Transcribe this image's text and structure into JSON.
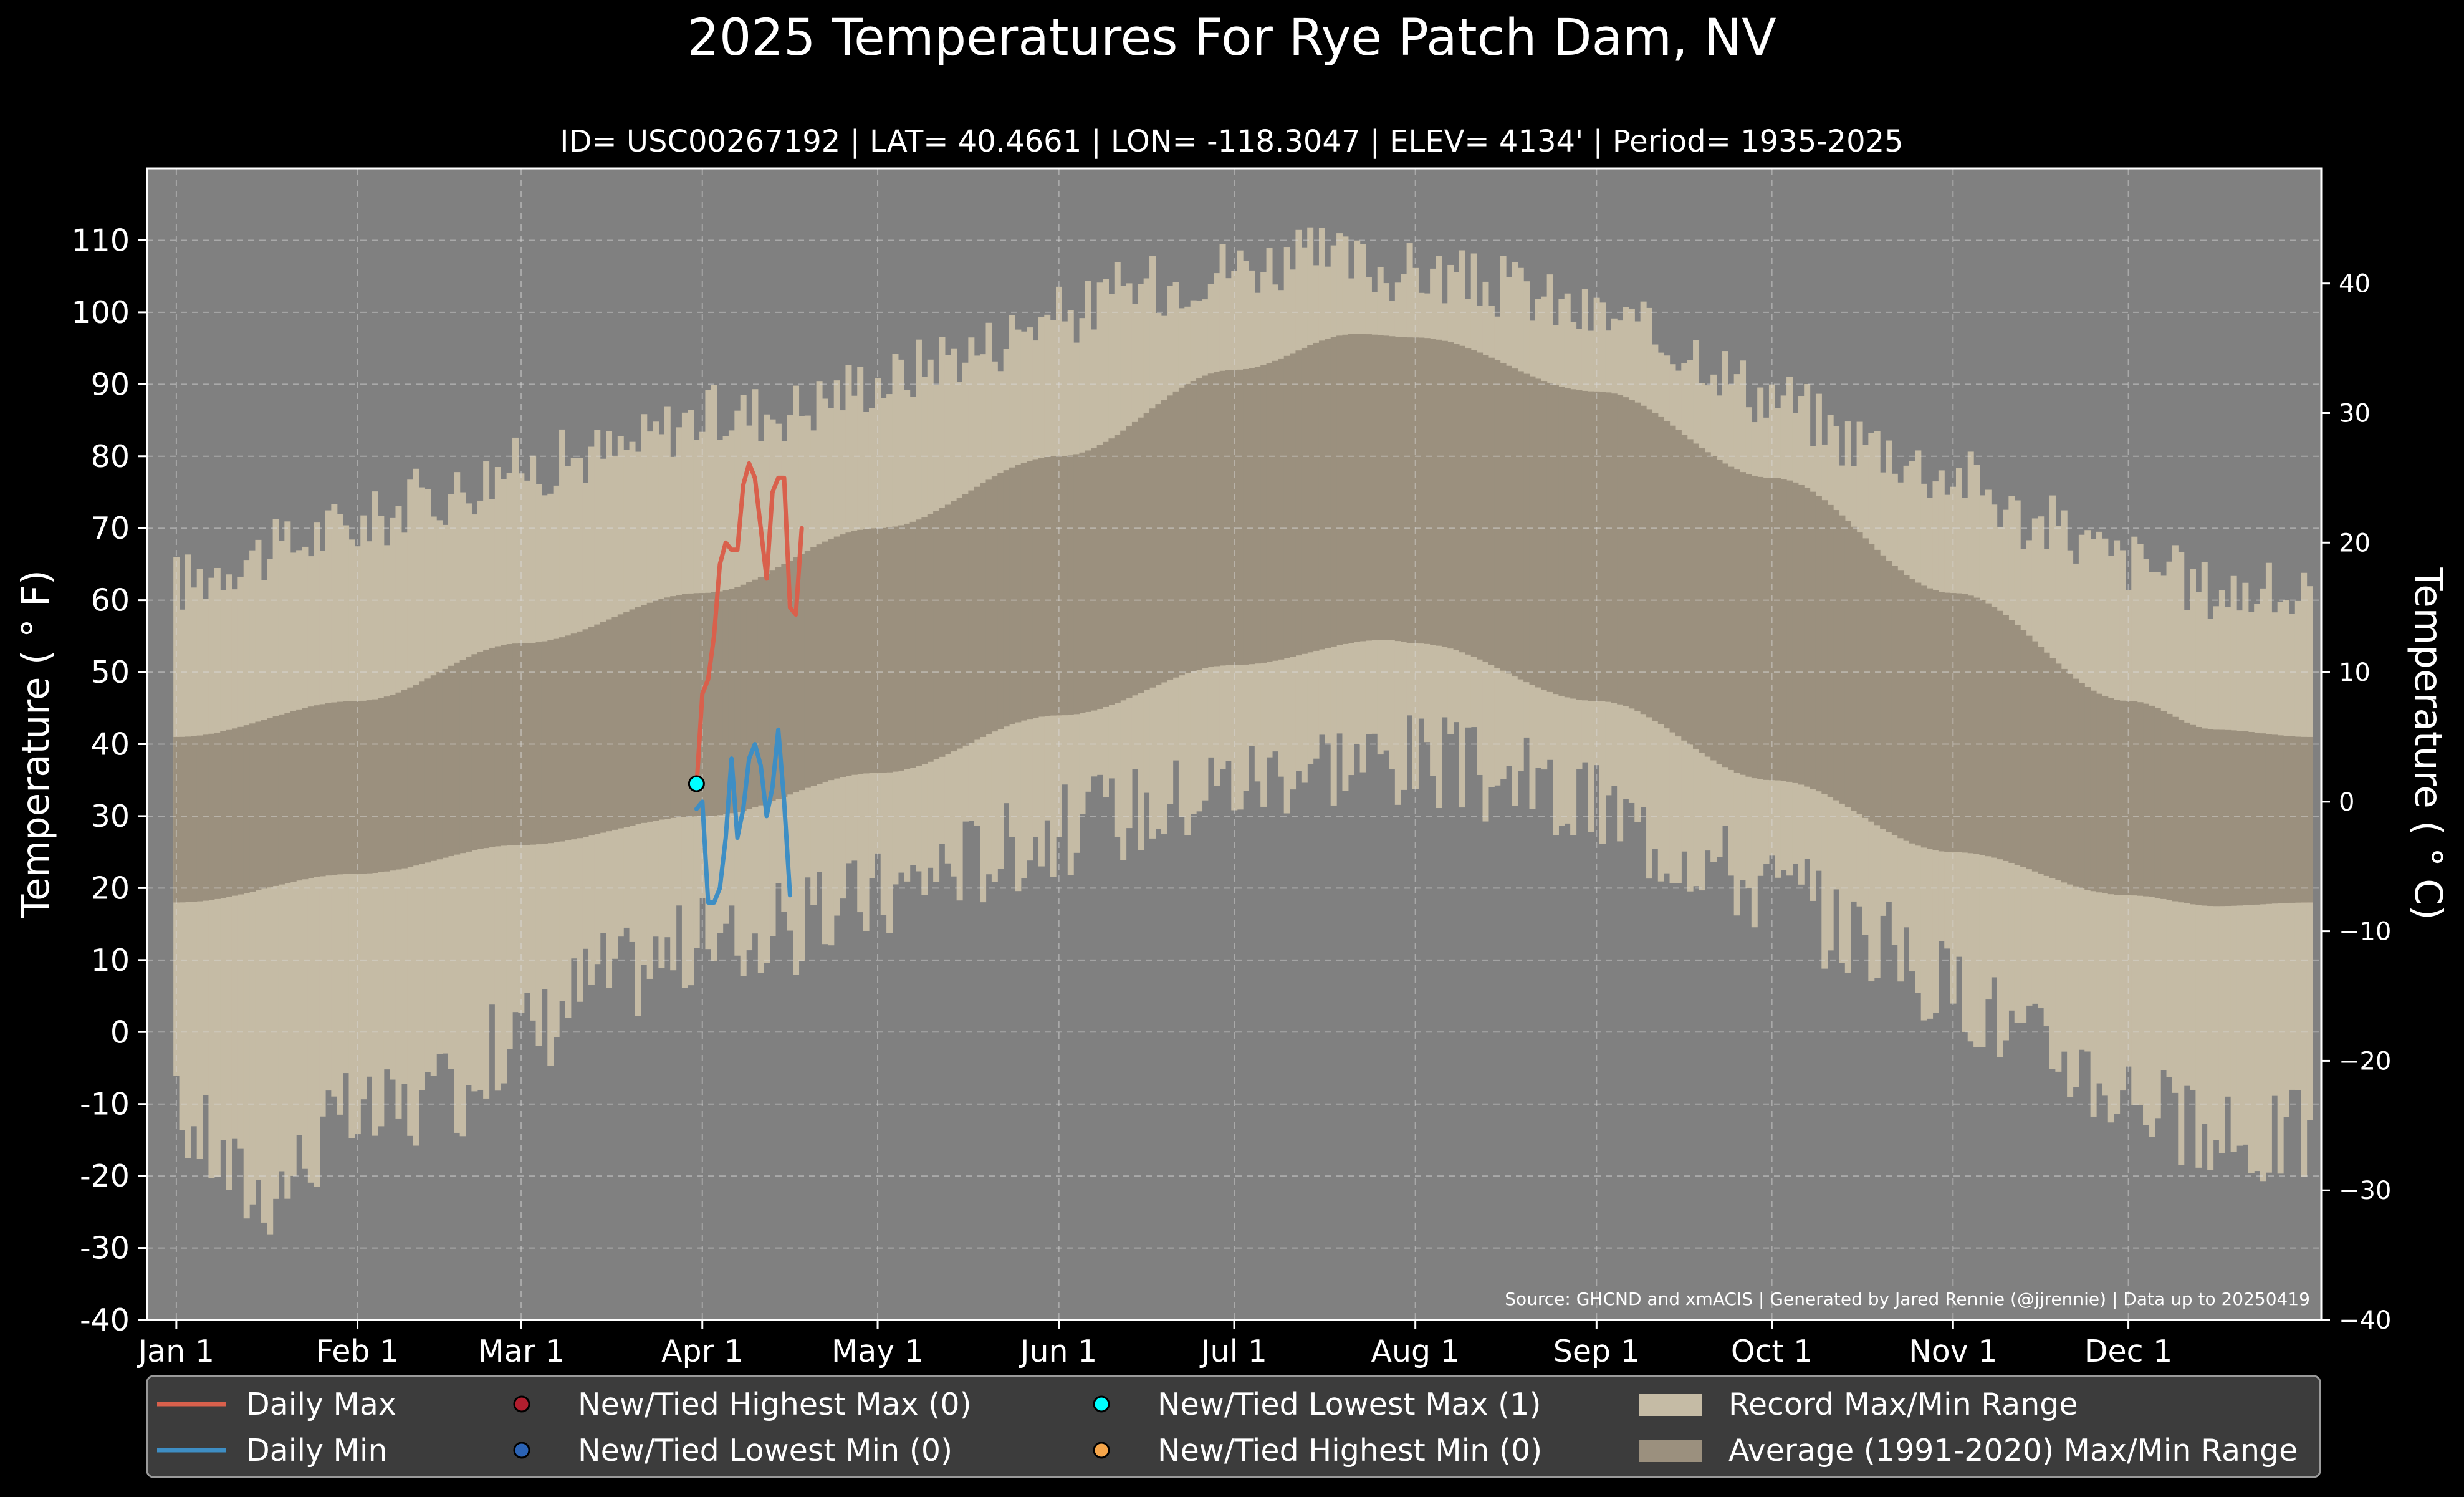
{
  "chart_data": {
    "type": "area",
    "title": "2025 Temperatures For Rye Patch Dam, NV",
    "subtitle": "ID= USC00267192 | LAT= 40.4661 | LON= -118.3047 | ELEV= 4134' | Period= 1935-2025",
    "ylabel_left": "Temperature ( ° F)",
    "ylabel_right": "Temperature ( ° C)",
    "source": "Source: GHCND and xmACIS | Generated by Jared Rennie (@jjrennie) | Data up to 20250419",
    "x_ticks": [
      {
        "label": "Jan 1",
        "day": 1
      },
      {
        "label": "Feb 1",
        "day": 32
      },
      {
        "label": "Mar 1",
        "day": 60
      },
      {
        "label": "Apr 1",
        "day": 91
      },
      {
        "label": "May 1",
        "day": 121
      },
      {
        "label": "Jun 1",
        "day": 152
      },
      {
        "label": "Jul 1",
        "day": 182
      },
      {
        "label": "Aug 1",
        "day": 213
      },
      {
        "label": "Sep 1",
        "day": 244
      },
      {
        "label": "Oct 1",
        "day": 274
      },
      {
        "label": "Nov 1",
        "day": 305
      },
      {
        "label": "Dec 1",
        "day": 335
      }
    ],
    "y_ticks_f": [
      110,
      100,
      90,
      80,
      70,
      60,
      50,
      40,
      30,
      20,
      10,
      0,
      -10,
      -20,
      -30,
      -40
    ],
    "y_ticks_c": [
      40,
      30,
      20,
      10,
      0,
      -10,
      -20,
      -30,
      -40
    ],
    "y_tick_labels_c": [
      "40",
      "30",
      "20",
      "10",
      "0",
      "−10",
      "−20",
      "−30",
      "−40"
    ],
    "ylim_f": [
      -40,
      120
    ],
    "xlim_days": [
      -4,
      368
    ],
    "grid": true,
    "record_max_anchors": [
      [
        1,
        62
      ],
      [
        15,
        66
      ],
      [
        32,
        70
      ],
      [
        45,
        74
      ],
      [
        60,
        78
      ],
      [
        75,
        80
      ],
      [
        91,
        85
      ],
      [
        105,
        86
      ],
      [
        121,
        90
      ],
      [
        135,
        94
      ],
      [
        152,
        99
      ],
      [
        166,
        103
      ],
      [
        182,
        106
      ],
      [
        196,
        107
      ],
      [
        213,
        105
      ],
      [
        228,
        103
      ],
      [
        244,
        99
      ],
      [
        258,
        95
      ],
      [
        274,
        88
      ],
      [
        288,
        82
      ],
      [
        305,
        77
      ],
      [
        320,
        70
      ],
      [
        335,
        65
      ],
      [
        350,
        61
      ],
      [
        366,
        60
      ]
    ],
    "record_min_anchors": [
      [
        1,
        -12
      ],
      [
        15,
        -22
      ],
      [
        32,
        -12
      ],
      [
        45,
        -10
      ],
      [
        60,
        0
      ],
      [
        75,
        8
      ],
      [
        91,
        12
      ],
      [
        105,
        14
      ],
      [
        121,
        19
      ],
      [
        135,
        24
      ],
      [
        152,
        28
      ],
      [
        166,
        31
      ],
      [
        182,
        35
      ],
      [
        196,
        38
      ],
      [
        213,
        38
      ],
      [
        228,
        35
      ],
      [
        244,
        31
      ],
      [
        258,
        26
      ],
      [
        274,
        20
      ],
      [
        288,
        14
      ],
      [
        305,
        6
      ],
      [
        320,
        -2
      ],
      [
        335,
        -8
      ],
      [
        350,
        -16
      ],
      [
        366,
        -14
      ]
    ],
    "average_max_anchors": [
      [
        1,
        41
      ],
      [
        32,
        46
      ],
      [
        60,
        54
      ],
      [
        91,
        61
      ],
      [
        121,
        70
      ],
      [
        152,
        80
      ],
      [
        182,
        92
      ],
      [
        203,
        97
      ],
      [
        213,
        96.5
      ],
      [
        244,
        89
      ],
      [
        274,
        77
      ],
      [
        305,
        61
      ],
      [
        335,
        46
      ],
      [
        350,
        42
      ],
      [
        366,
        41
      ]
    ],
    "average_min_anchors": [
      [
        1,
        18
      ],
      [
        32,
        22
      ],
      [
        60,
        26
      ],
      [
        91,
        30
      ],
      [
        121,
        36
      ],
      [
        152,
        44
      ],
      [
        182,
        51
      ],
      [
        208,
        54.5
      ],
      [
        213,
        54
      ],
      [
        244,
        46
      ],
      [
        274,
        35
      ],
      [
        305,
        25
      ],
      [
        335,
        19
      ],
      [
        350,
        17.5
      ],
      [
        366,
        18
      ]
    ],
    "series": [
      {
        "name": "Daily Max",
        "color": "#d9604c",
        "x": [
          90,
          91,
          92,
          93,
          94,
          95,
          96,
          97,
          98,
          99,
          100,
          101,
          102,
          103,
          104,
          105,
          106,
          107,
          108,
          109
        ],
        "y": [
          34,
          47,
          49,
          55,
          65,
          68,
          67,
          67,
          76,
          79,
          77,
          70,
          63,
          75,
          77,
          77,
          59,
          58,
          70,
          null
        ]
      },
      {
        "name": "Daily Min",
        "color": "#3e8ec4",
        "x": [
          90,
          91,
          92,
          93,
          94,
          95,
          96,
          97,
          98,
          99,
          100,
          101,
          102,
          103,
          104,
          105,
          106,
          107,
          108,
          109
        ],
        "y": [
          31,
          32,
          18,
          18,
          20,
          27,
          38,
          27,
          31,
          38,
          40,
          37,
          30,
          34,
          42,
          32,
          19,
          null,
          null,
          null
        ]
      }
    ],
    "markers": [
      {
        "name": "New/Tied Lowest Max",
        "day": 90,
        "value": 34.5,
        "color": "#00ffff"
      }
    ],
    "legend": {
      "position": "bottom",
      "entries": [
        {
          "label": "Daily Max",
          "kind": "line",
          "color": "#d9604c"
        },
        {
          "label": "Daily Min",
          "kind": "line",
          "color": "#3e8ec4"
        },
        {
          "label": "New/Tied Highest Max (0)",
          "kind": "dot",
          "color": "#b01e2e"
        },
        {
          "label": "New/Tied Lowest Min (0)",
          "kind": "dot",
          "color": "#2b63b5"
        },
        {
          "label": "New/Tied Lowest Max (1)",
          "kind": "dot",
          "color": "#00ffff"
        },
        {
          "label": "New/Tied Highest Min (0)",
          "kind": "dot",
          "color": "#f5a54a"
        },
        {
          "label": "Record Max/Min Range",
          "kind": "patch",
          "color": "#c5bba5"
        },
        {
          "label": "Average (1991-2020) Max/Min Range",
          "kind": "patch",
          "color": "#9b907e"
        }
      ]
    },
    "colors": {
      "background": "#000000",
      "plot_background": "#808080",
      "record_range": "#c5bba5",
      "average_range": "#9b907e",
      "legend_background": "#3c3c3c"
    }
  }
}
